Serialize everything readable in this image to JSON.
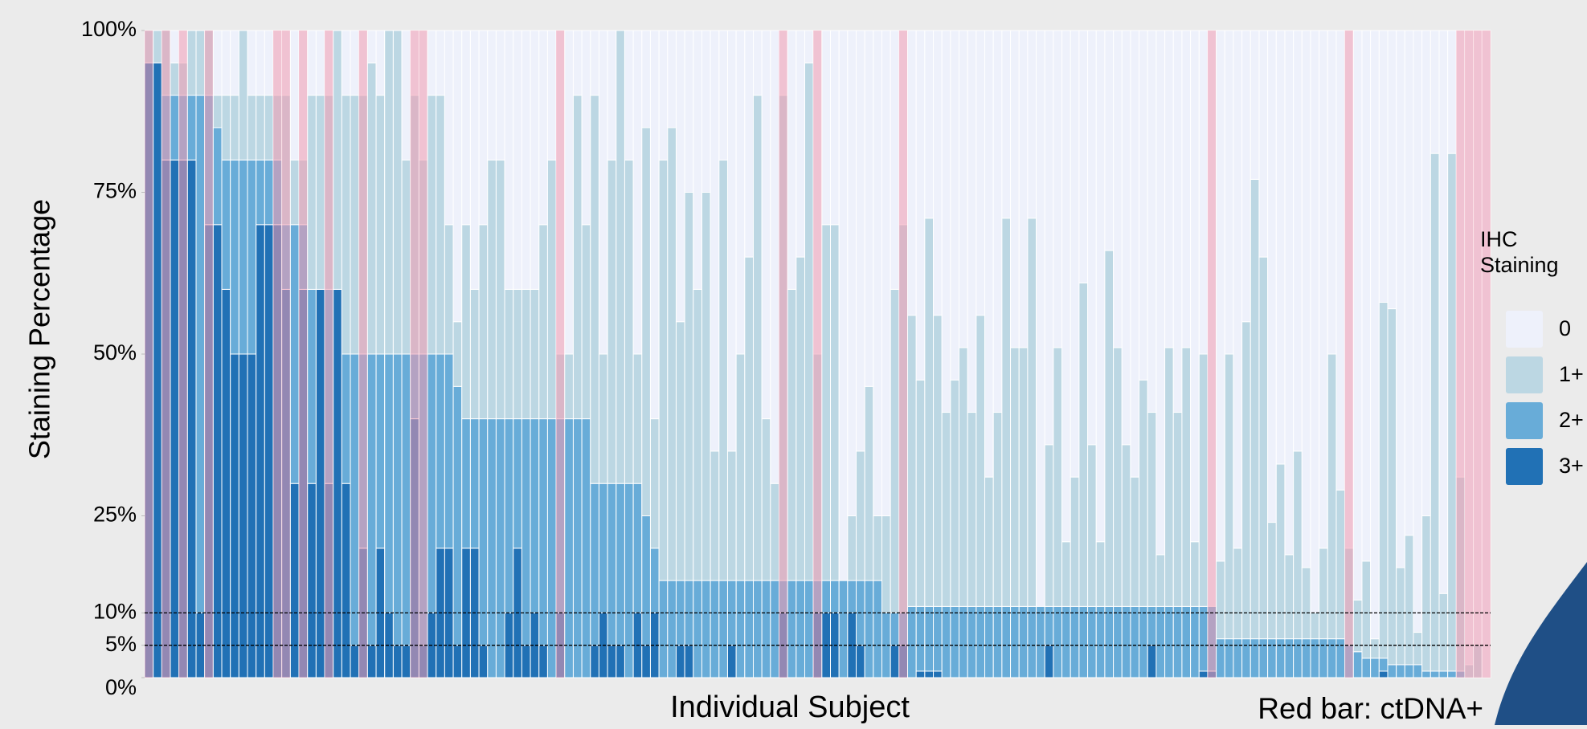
{
  "chart_data": {
    "type": "stacked_bar",
    "y_label": "Staining Percentage",
    "x_label": "Individual Subject",
    "annotation": "Red bar: ctDNA+",
    "legend_title": "IHC Staining",
    "legend": "right",
    "ylim": [
      0,
      100
    ],
    "yticks": [
      {
        "value": 0,
        "label": "0%"
      },
      {
        "value": 5,
        "label": "5%"
      },
      {
        "value": 10,
        "label": "10%"
      },
      {
        "value": 25,
        "label": "25%"
      },
      {
        "value": 50,
        "label": "50%"
      },
      {
        "value": 75,
        "label": "75%"
      },
      {
        "value": 100,
        "label": "100%"
      }
    ],
    "hlines": [
      5,
      10
    ],
    "highlight_color": "#f29ab0",
    "categories": [
      null,
      null,
      null,
      null,
      null,
      null,
      null,
      null,
      null,
      null,
      null,
      null,
      null,
      null,
      null,
      null,
      null,
      null,
      null,
      null,
      null,
      null,
      null,
      null,
      null,
      null,
      null,
      null,
      null,
      null,
      null,
      null,
      null,
      null,
      null,
      null,
      null,
      null,
      null,
      null,
      null,
      null,
      null,
      null,
      null,
      null,
      null,
      null,
      null,
      null,
      null,
      null,
      null,
      null,
      null,
      null,
      null,
      null,
      null,
      null,
      null,
      null,
      null,
      null,
      null,
      null,
      null,
      null,
      null,
      null,
      null,
      null,
      null,
      null,
      null,
      null,
      null,
      null,
      null,
      null,
      null,
      null,
      null,
      null,
      null,
      null,
      null,
      null,
      null,
      null,
      null,
      null,
      null,
      null,
      null,
      null,
      null,
      null,
      null,
      null,
      null,
      null,
      null,
      null,
      null,
      null,
      null,
      null,
      null,
      null,
      null,
      null,
      null,
      null,
      null,
      null,
      null,
      null,
      null,
      null,
      null,
      null,
      null,
      null,
      null,
      null,
      null,
      null,
      null,
      null,
      null,
      null,
      null,
      null,
      null,
      null,
      null,
      null,
      null,
      null,
      null,
      null,
      null,
      null,
      null,
      null,
      null,
      null,
      null,
      null,
      null,
      null,
      null,
      null,
      null,
      null,
      null
    ],
    "ctdna_positive": [
      true,
      false,
      true,
      false,
      true,
      false,
      false,
      true,
      false,
      false,
      false,
      false,
      false,
      false,
      false,
      true,
      true,
      false,
      true,
      false,
      false,
      true,
      false,
      false,
      false,
      true,
      false,
      false,
      false,
      false,
      false,
      true,
      true,
      false,
      false,
      false,
      false,
      false,
      false,
      false,
      false,
      false,
      false,
      false,
      false,
      false,
      false,
      false,
      true,
      false,
      false,
      false,
      false,
      false,
      false,
      false,
      false,
      false,
      false,
      false,
      false,
      false,
      false,
      false,
      false,
      false,
      false,
      false,
      false,
      false,
      false,
      false,
      false,
      false,
      true,
      false,
      false,
      false,
      true,
      false,
      false,
      false,
      false,
      false,
      false,
      false,
      false,
      false,
      true,
      false,
      false,
      false,
      false,
      false,
      false,
      false,
      false,
      false,
      false,
      false,
      false,
      false,
      false,
      false,
      false,
      false,
      false,
      false,
      false,
      false,
      false,
      false,
      false,
      false,
      false,
      false,
      false,
      false,
      false,
      false,
      false,
      false,
      false,
      false,
      true,
      false,
      false,
      false,
      false,
      false,
      false,
      false,
      false,
      false,
      false,
      false,
      false,
      false,
      false,
      false,
      true,
      false,
      false,
      false,
      false,
      false,
      false,
      false,
      false,
      false,
      false,
      false,
      false,
      true,
      true,
      true,
      true
    ],
    "series": [
      {
        "name": "3+",
        "color": "#2171b5",
        "values": [
          95,
          95,
          80,
          80,
          80,
          80,
          10,
          70,
          70,
          60,
          50,
          50,
          50,
          70,
          70,
          70,
          60,
          30,
          60,
          30,
          60,
          30,
          60,
          30,
          5,
          20,
          5,
          20,
          10,
          5,
          5,
          40,
          5,
          10,
          20,
          20,
          5,
          20,
          20,
          5,
          0,
          0,
          10,
          20,
          5,
          10,
          5,
          0,
          10,
          0,
          0,
          0,
          5,
          10,
          5,
          5,
          0,
          10,
          5,
          10,
          0,
          0,
          5,
          5,
          0,
          0,
          0,
          0,
          5,
          0,
          0,
          0,
          0,
          0,
          10,
          0,
          0,
          0,
          10,
          10,
          10,
          0,
          10,
          5,
          0,
          0,
          0,
          5,
          5,
          0,
          1,
          1,
          1,
          0,
          0,
          0,
          0,
          0,
          0,
          0,
          0,
          0,
          0,
          0,
          0,
          5,
          0,
          0,
          0,
          0,
          0,
          0,
          0,
          0,
          0,
          0,
          0,
          5,
          0,
          0,
          0,
          0,
          0,
          1,
          1,
          0,
          0,
          0,
          0,
          0,
          0,
          0,
          0,
          0,
          0,
          0,
          0,
          0,
          0,
          0,
          0,
          0,
          0,
          0,
          1,
          0,
          0,
          0,
          0,
          0,
          0,
          0,
          0,
          0,
          0,
          0,
          0
        ]
      },
      {
        "name": "2+",
        "color": "#68acd8",
        "values": [
          0,
          0,
          10,
          10,
          10,
          10,
          80,
          20,
          15,
          20,
          30,
          30,
          30,
          10,
          10,
          10,
          10,
          40,
          10,
          30,
          0,
          30,
          0,
          20,
          45,
          30,
          45,
          30,
          40,
          45,
          45,
          10,
          45,
          40,
          30,
          30,
          40,
          20,
          20,
          35,
          40,
          40,
          30,
          20,
          35,
          30,
          35,
          40,
          30,
          40,
          40,
          40,
          25,
          20,
          25,
          25,
          30,
          20,
          20,
          10,
          15,
          15,
          10,
          10,
          15,
          15,
          15,
          15,
          10,
          15,
          15,
          15,
          15,
          15,
          5,
          15,
          15,
          15,
          5,
          5,
          5,
          15,
          5,
          10,
          15,
          15,
          10,
          5,
          5,
          11,
          10,
          10,
          10,
          11,
          11,
          11,
          11,
          11,
          11,
          11,
          11,
          11,
          11,
          11,
          11,
          6,
          11,
          11,
          11,
          11,
          11,
          11,
          11,
          11,
          11,
          11,
          11,
          6,
          11,
          11,
          11,
          11,
          11,
          10,
          10,
          6,
          6,
          6,
          6,
          6,
          6,
          6,
          6,
          6,
          6,
          6,
          6,
          6,
          6,
          6,
          5,
          4,
          3,
          3,
          2,
          2,
          2,
          2,
          2,
          1,
          1,
          1,
          1,
          1,
          0,
          0,
          0
        ]
      },
      {
        "name": "1+",
        "color": "#bcd7e3",
        "values": [
          5,
          5,
          10,
          5,
          5,
          10,
          10,
          10,
          5,
          10,
          10,
          20,
          10,
          10,
          10,
          10,
          20,
          10,
          10,
          30,
          30,
          30,
          40,
          40,
          40,
          40,
          45,
          40,
          50,
          50,
          30,
          40,
          30,
          40,
          40,
          20,
          10,
          30,
          20,
          30,
          40,
          40,
          20,
          20,
          20,
          20,
          30,
          40,
          10,
          10,
          50,
          30,
          60,
          20,
          50,
          70,
          50,
          20,
          60,
          20,
          65,
          70,
          40,
          60,
          45,
          60,
          20,
          65,
          20,
          35,
          50,
          75,
          25,
          15,
          75,
          45,
          50,
          80,
          35,
          55,
          55,
          0,
          10,
          20,
          30,
          10,
          15,
          50,
          60,
          45,
          35,
          60,
          45,
          30,
          35,
          40,
          30,
          45,
          20,
          30,
          60,
          40,
          40,
          60,
          0,
          25,
          40,
          10,
          20,
          50,
          25,
          10,
          55,
          40,
          25,
          20,
          35,
          30,
          8,
          40,
          30,
          40,
          10,
          39,
          0,
          12,
          44,
          14,
          49,
          71,
          59,
          18,
          27,
          13,
          29,
          11,
          4,
          14,
          44,
          23,
          15,
          8,
          15,
          3,
          55,
          55,
          15,
          20,
          5,
          24,
          80,
          12,
          80,
          30,
          2,
          5,
          0
        ]
      },
      {
        "name": "0",
        "color": "#eef1fb",
        "values": [
          0,
          0,
          0,
          5,
          5,
          0,
          0,
          0,
          10,
          10,
          10,
          0,
          10,
          10,
          10,
          10,
          10,
          20,
          20,
          10,
          10,
          10,
          0,
          10,
          10,
          10,
          5,
          10,
          0,
          0,
          20,
          10,
          20,
          10,
          10,
          30,
          45,
          30,
          40,
          30,
          20,
          20,
          40,
          40,
          40,
          40,
          30,
          20,
          50,
          50,
          10,
          30,
          10,
          50,
          20,
          0,
          20,
          50,
          15,
          60,
          20,
          15,
          45,
          25,
          40,
          25,
          65,
          20,
          65,
          50,
          35,
          10,
          60,
          70,
          10,
          40,
          35,
          5,
          50,
          30,
          30,
          85,
          75,
          65,
          55,
          75,
          75,
          40,
          30,
          44,
          54,
          29,
          44,
          59,
          54,
          49,
          59,
          44,
          69,
          59,
          29,
          49,
          49,
          29,
          89,
          64,
          49,
          79,
          69,
          39,
          64,
          79,
          34,
          49,
          64,
          69,
          54,
          59,
          81,
          49,
          59,
          49,
          79,
          50,
          89,
          82,
          50,
          80,
          45,
          23,
          35,
          76,
          67,
          81,
          65,
          83,
          90,
          80,
          50,
          71,
          80,
          88,
          82,
          94,
          42,
          43,
          83,
          78,
          93,
          75,
          19,
          87,
          19,
          69,
          98,
          95,
          100
        ]
      }
    ]
  }
}
